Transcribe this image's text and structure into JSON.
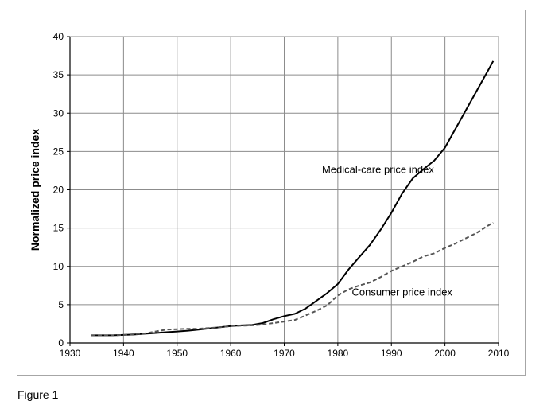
{
  "caption": "Figure 1",
  "chart_data": {
    "type": "line",
    "title": "",
    "xlabel": "",
    "ylabel": "Normalized price index",
    "xlim": [
      1930,
      2010
    ],
    "ylim": [
      0,
      40
    ],
    "x_ticks": [
      1930,
      1940,
      1950,
      1960,
      1970,
      1980,
      1990,
      2000,
      2010
    ],
    "y_ticks": [
      0,
      5,
      10,
      15,
      20,
      25,
      30,
      35,
      40
    ],
    "grid": true,
    "legend": "none",
    "annotations": [
      {
        "text": "Medical-care price index",
        "x": 1987.5,
        "y": 22.2
      },
      {
        "text": "Consumer price index",
        "x": 1992,
        "y": 6.2
      }
    ],
    "series": [
      {
        "style": "solid",
        "color": "#000000",
        "x": [
          1934,
          1938,
          1940,
          1942,
          1944,
          1946,
          1948,
          1950,
          1952,
          1954,
          1956,
          1958,
          1960,
          1962,
          1964,
          1966,
          1968,
          1970,
          1972,
          1974,
          1976,
          1978,
          1980,
          1982,
          1984,
          1986,
          1988,
          1990,
          1992,
          1994,
          1996,
          1998,
          2000,
          2002,
          2004,
          2006,
          2008,
          2009
        ],
        "y": [
          1.0,
          1.0,
          1.05,
          1.1,
          1.2,
          1.3,
          1.4,
          1.5,
          1.6,
          1.75,
          1.9,
          2.05,
          2.2,
          2.3,
          2.35,
          2.6,
          3.1,
          3.5,
          3.8,
          4.5,
          5.5,
          6.5,
          7.7,
          9.6,
          11.2,
          12.8,
          14.8,
          17.0,
          19.5,
          21.5,
          22.7,
          23.8,
          25.5,
          28.0,
          30.5,
          33.0,
          35.5,
          36.8
        ]
      },
      {
        "style": "dashed",
        "color": "#555555",
        "x": [
          1934,
          1938,
          1940,
          1942,
          1944,
          1946,
          1948,
          1950,
          1952,
          1954,
          1956,
          1958,
          1960,
          1962,
          1964,
          1966,
          1968,
          1970,
          1972,
          1974,
          1976,
          1978,
          1980,
          1982,
          1984,
          1986,
          1988,
          1990,
          1992,
          1994,
          1996,
          1998,
          2000,
          2002,
          2004,
          2006,
          2008,
          2009
        ],
        "y": [
          1.0,
          1.0,
          1.05,
          1.15,
          1.25,
          1.5,
          1.75,
          1.8,
          1.85,
          1.85,
          1.95,
          2.05,
          2.2,
          2.25,
          2.3,
          2.4,
          2.6,
          2.8,
          3.0,
          3.6,
          4.2,
          4.9,
          6.2,
          7.0,
          7.5,
          7.9,
          8.6,
          9.4,
          10.0,
          10.6,
          11.3,
          11.7,
          12.4,
          13.0,
          13.7,
          14.4,
          15.3,
          15.7
        ]
      }
    ]
  }
}
